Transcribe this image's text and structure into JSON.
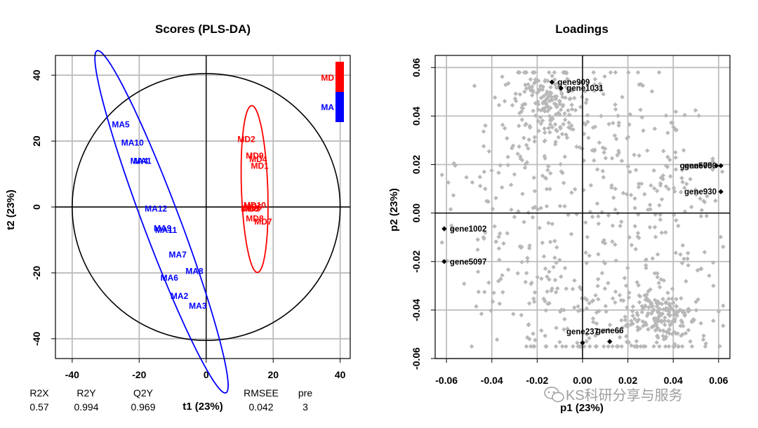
{
  "chart_data": [
    {
      "type": "scatter",
      "title": "Scores (PLS-DA)",
      "xlabel": "t1 (23%)",
      "ylabel": "t2 (23%)",
      "xlim": [
        -45,
        43
      ],
      "ylim": [
        -46,
        46
      ],
      "xticks": [
        -40,
        -20,
        0,
        20,
        40
      ],
      "yticks": [
        -40,
        -20,
        0,
        20,
        40
      ],
      "grid": true,
      "legend": {
        "position": "top-right",
        "entries": [
          {
            "name": "MD",
            "color": "#ff0000"
          },
          {
            "name": "MA",
            "color": "#0000ff"
          }
        ]
      },
      "series": [
        {
          "name": "MD",
          "color": "#ff0000",
          "points": [
            {
              "label": "MD2",
              "x": 12,
              "y": 20.5
            },
            {
              "label": "MD9",
              "x": 14.5,
              "y": 15.5
            },
            {
              "label": "MD4",
              "x": 15.5,
              "y": 14.5
            },
            {
              "label": "MD1",
              "x": 16,
              "y": 12.5
            },
            {
              "label": "MD10",
              "x": 14.5,
              "y": 0.5
            },
            {
              "label": "MD6",
              "x": 14,
              "y": 0
            },
            {
              "label": "MD5",
              "x": 13,
              "y": -0.5
            },
            {
              "label": "MD3",
              "x": 13.5,
              "y": -0.5
            },
            {
              "label": "MD8",
              "x": 14.5,
              "y": -3.5
            },
            {
              "label": "MD7",
              "x": 17,
              "y": -4.5
            }
          ]
        },
        {
          "name": "MA",
          "color": "#0000ff",
          "points": [
            {
              "label": "MA5",
              "x": -25.5,
              "y": 25
            },
            {
              "label": "MA10",
              "x": -22,
              "y": 19.5
            },
            {
              "label": "MA4",
              "x": -20,
              "y": 14
            },
            {
              "label": "MA1",
              "x": -19,
              "y": 14
            },
            {
              "label": "MA12",
              "x": -15,
              "y": -0.5
            },
            {
              "label": "MA9",
              "x": -13,
              "y": -6.5
            },
            {
              "label": "MA11",
              "x": -12,
              "y": -7
            },
            {
              "label": "MA7",
              "x": -8.5,
              "y": -14.5
            },
            {
              "label": "MA8",
              "x": -3.5,
              "y": -19.5
            },
            {
              "label": "MA6",
              "x": -11,
              "y": -21.5
            },
            {
              "label": "MA2",
              "x": -8,
              "y": -27
            },
            {
              "label": "MA3",
              "x": -2.5,
              "y": -30
            }
          ]
        }
      ],
      "stats": {
        "headers": [
          "R2X",
          "R2Y",
          "Q2Y",
          "RMSEE",
          "pre"
        ],
        "values": [
          "0.57",
          "0.994",
          "0.969",
          "0.042",
          "3"
        ]
      }
    },
    {
      "type": "scatter",
      "title": "Loadings",
      "xlabel": "p1 (23%)",
      "ylabel": "p2 (23%)",
      "xlim": [
        -0.065,
        0.065
      ],
      "ylim": [
        -0.06,
        0.065
      ],
      "xticks": [
        "-0.06",
        "-0.04",
        "-0.02",
        "0.00",
        "0.02",
        "0.04",
        "0.06"
      ],
      "yticks": [
        "-0.06",
        "-0.04",
        "-0.02",
        "0.00",
        "0.02",
        "0.04",
        "0.06"
      ],
      "grid": true,
      "background_points": {
        "count": 900,
        "color": "#b8b8b8",
        "description_note": "gray unlabeled loadings"
      },
      "highlighted": [
        {
          "label": "gene909",
          "x": -0.0135,
          "y": 0.054
        },
        {
          "label": "gene1031",
          "x": -0.0095,
          "y": 0.0515
        },
        {
          "label": "gene750",
          "x": 0.061,
          "y": 0.0195
        },
        {
          "label": "gene500",
          "x": 0.059,
          "y": 0.0195
        },
        {
          "label": "gene930",
          "x": 0.061,
          "y": 0.0088
        },
        {
          "label": "gene1002",
          "x": -0.061,
          "y": -0.0065
        },
        {
          "label": "gene5097",
          "x": -0.061,
          "y": -0.02
        },
        {
          "label": "gene237",
          "x": 0.0,
          "y": -0.0535
        },
        {
          "label": "gene66",
          "x": 0.012,
          "y": -0.053
        }
      ]
    }
  ],
  "watermark": "KS科研分享与服务"
}
